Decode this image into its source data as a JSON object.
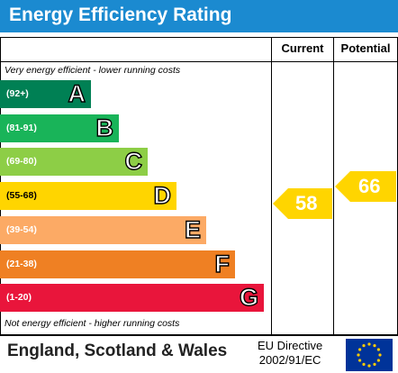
{
  "title": "Energy Efficiency Rating",
  "columns": {
    "current": "Current",
    "potential": "Potential"
  },
  "notes": {
    "top": "Very energy efficient - lower running costs",
    "bottom": "Not energy efficient - higher running costs"
  },
  "bands": [
    {
      "range": "(92+)",
      "letter": "A",
      "color": "#008054"
    },
    {
      "range": "(81-91)",
      "letter": "B",
      "color": "#19b459"
    },
    {
      "range": "(69-80)",
      "letter": "C",
      "color": "#8dce46"
    },
    {
      "range": "(55-68)",
      "letter": "D",
      "color": "#ffd500"
    },
    {
      "range": "(39-54)",
      "letter": "E",
      "color": "#fcaa65"
    },
    {
      "range": "(21-38)",
      "letter": "F",
      "color": "#ef8023"
    },
    {
      "range": "(1-20)",
      "letter": "G",
      "color": "#e9153b"
    }
  ],
  "current_rating": {
    "value": "58",
    "band": "D",
    "color": "#ffd500"
  },
  "potential_rating": {
    "value": "66",
    "band": "D",
    "color": "#ffd500"
  },
  "footer": {
    "region": "England, Scotland & Wales",
    "directive_line1": "EU Directive",
    "directive_line2": "2002/91/EC"
  },
  "icons": {
    "flag": "eu-flag-icon"
  }
}
